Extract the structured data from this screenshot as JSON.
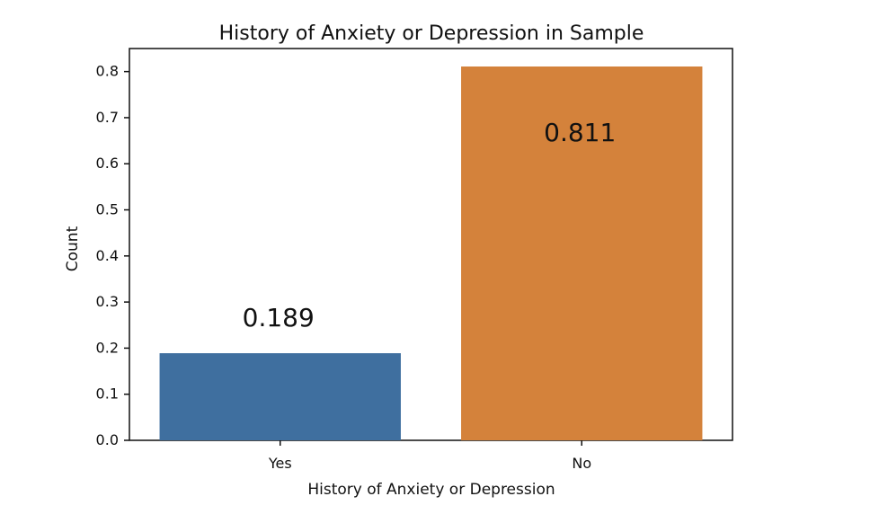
{
  "chart_data": {
    "type": "bar",
    "title": "History of Anxiety or Depression in Sample",
    "xlabel": "History of Anxiety or Depression",
    "ylabel": "Count",
    "categories": [
      "Yes",
      "No"
    ],
    "values": [
      0.189,
      0.811
    ],
    "data_labels": [
      "0.189",
      "0.811"
    ],
    "ylim": [
      0,
      0.85
    ],
    "y_ticks": [
      0.0,
      0.1,
      0.2,
      0.3,
      0.4,
      0.5,
      0.6,
      0.7,
      0.8
    ],
    "y_tick_labels": [
      "0.0",
      "0.1",
      "0.2",
      "0.3",
      "0.4",
      "0.5",
      "0.6",
      "0.7",
      "0.8"
    ],
    "colors": [
      "#3f6f9f",
      "#d4823b"
    ],
    "grid": false,
    "legend": null
  }
}
